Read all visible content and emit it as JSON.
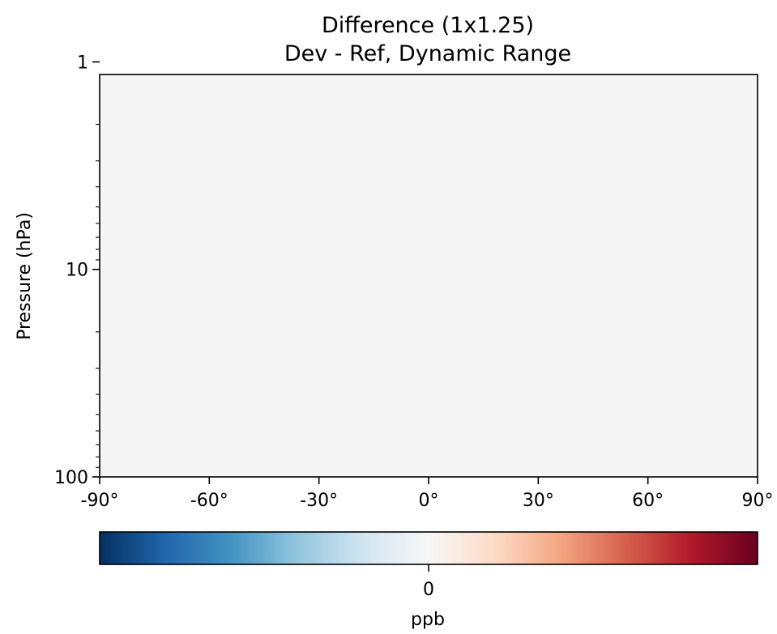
{
  "chart_data": {
    "type": "heatmap",
    "title": "Difference (1x1.25)",
    "subtitle": "Dev - Ref, Dynamic Range",
    "xlabel": "",
    "ylabel": "Pressure (hPa)",
    "xlim": [
      -90,
      90
    ],
    "ylim": [
      1.15,
      100
    ],
    "y_scale": "log",
    "y_inverted": true,
    "x_ticks": [
      -90,
      -60,
      -30,
      0,
      30,
      60,
      90
    ],
    "x_tick_labels": [
      "-90°",
      "-60°",
      "-30°",
      "0°",
      "30°",
      "60°",
      "90°"
    ],
    "y_ticks": [
      1,
      10,
      100
    ],
    "y_tick_labels": [
      "1",
      "10",
      "100"
    ],
    "field_value": 0,
    "field_color": "#f5f5f5",
    "grid": false,
    "colorbar": {
      "orientation": "horizontal",
      "placement": "bottom",
      "colormap": "RdBu_r",
      "colors": [
        "#053061",
        "#2166ac",
        "#4393c3",
        "#92c5de",
        "#d1e5f0",
        "#f7f7f7",
        "#fddbc7",
        "#f4a582",
        "#d6604d",
        "#b2182b",
        "#67001f"
      ],
      "ticks": [
        0
      ],
      "tick_labels": [
        "0"
      ],
      "label": "ppb"
    }
  }
}
